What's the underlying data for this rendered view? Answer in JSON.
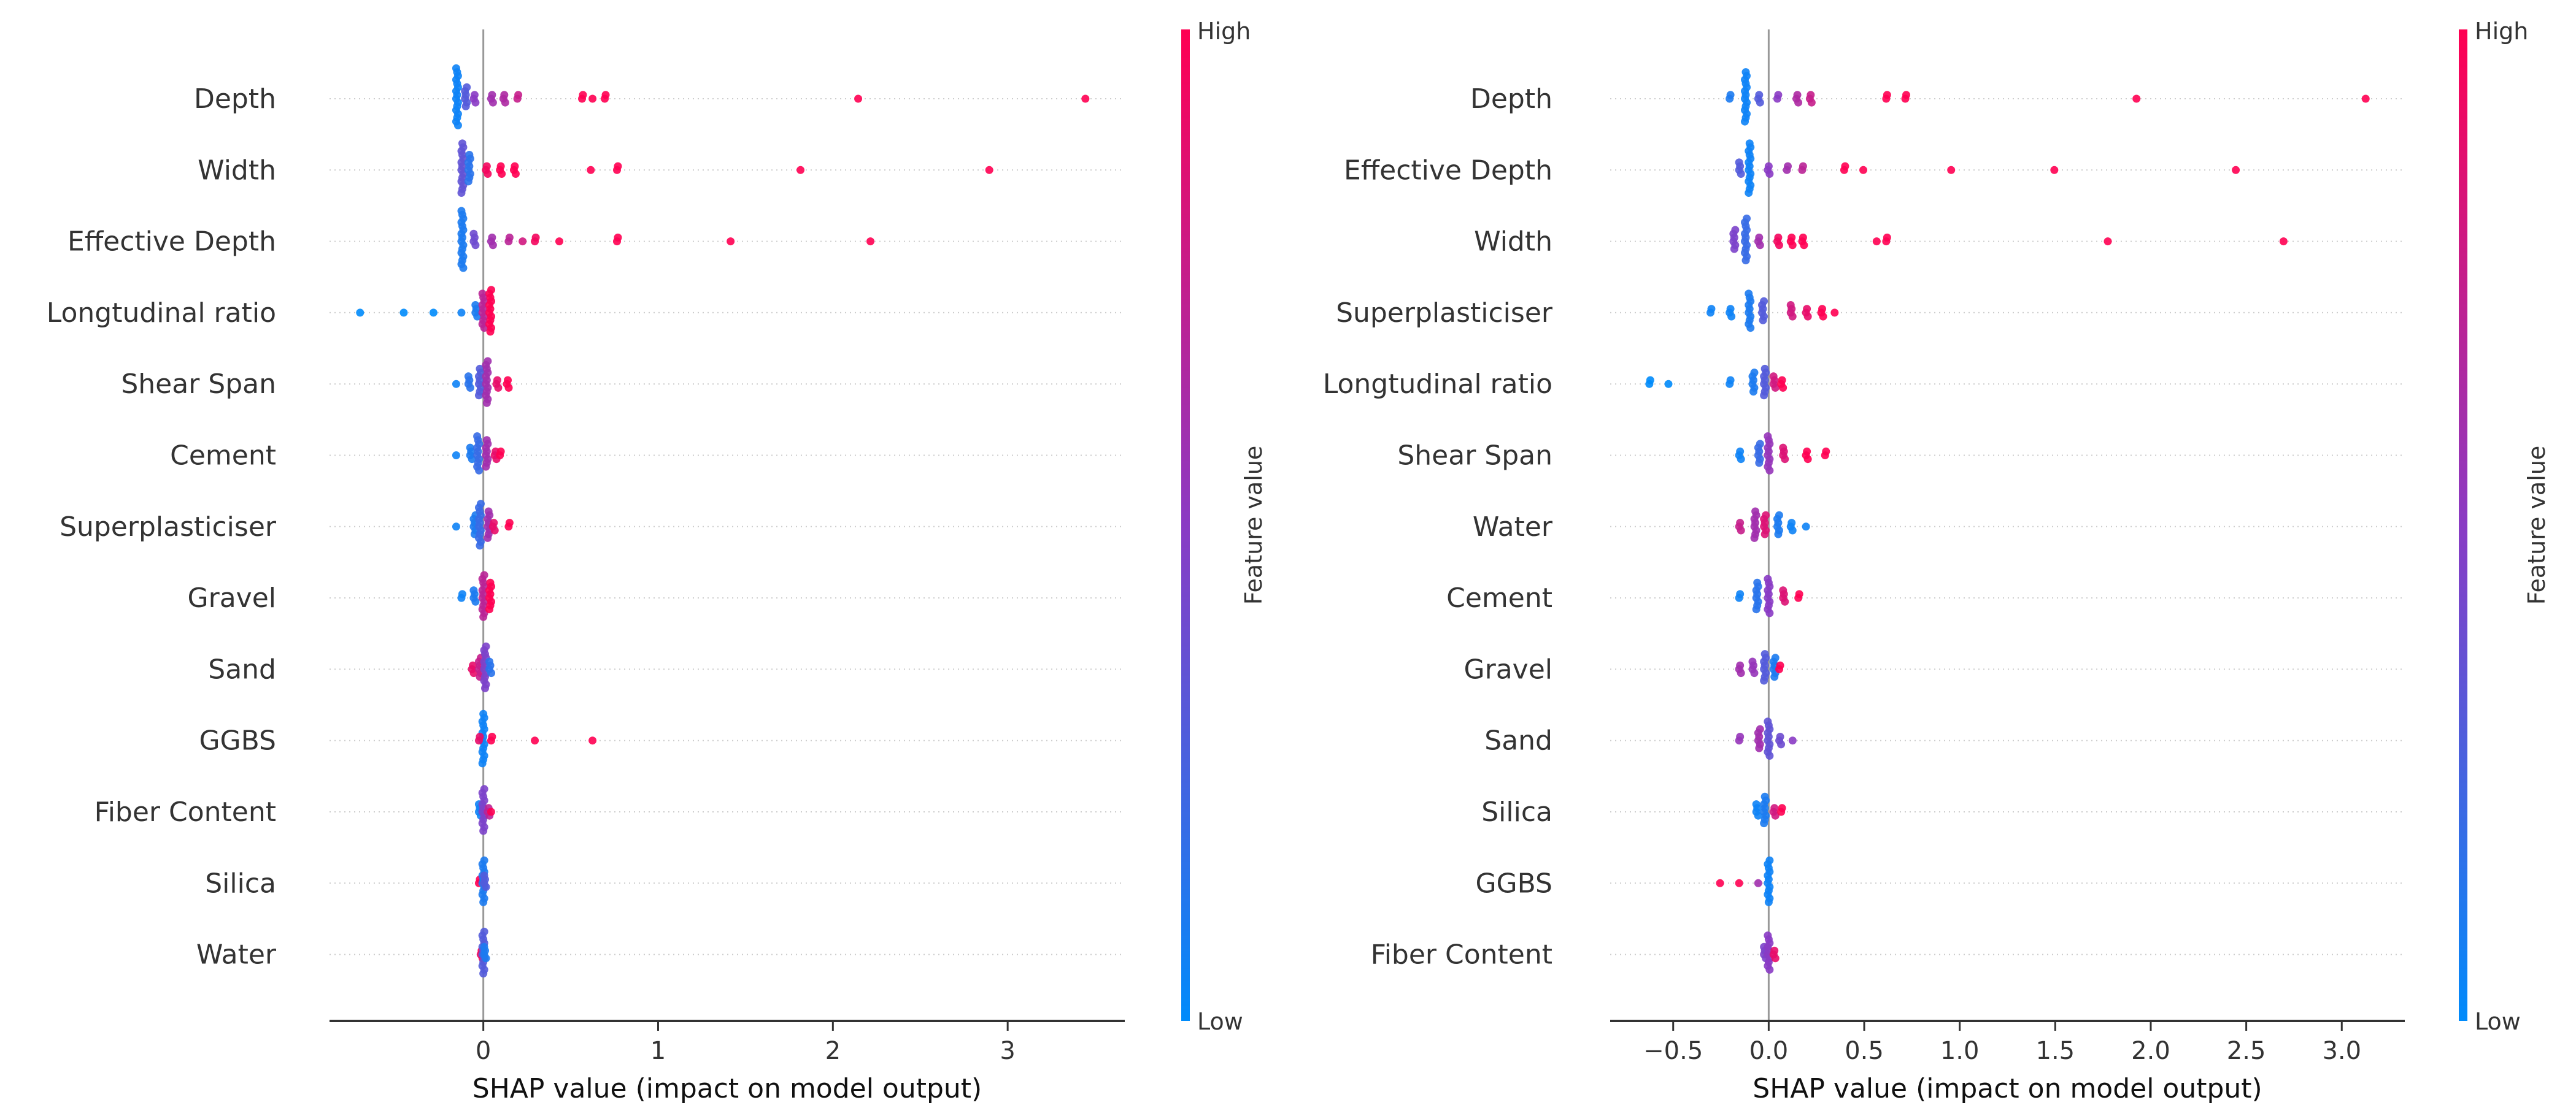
{
  "chart_data": [
    {
      "type": "scatter",
      "subtype": "shap-beeswarm",
      "xlabel": "SHAP value (impact on model output)",
      "xlim": [
        -0.88,
        3.67
      ],
      "xticks": [
        0,
        1,
        2,
        3
      ],
      "xtick_labels": [
        "0",
        "1",
        "2",
        "3"
      ],
      "colorbar": {
        "title": "Feature value",
        "high": "High",
        "low": "Low",
        "low_color": "#008bfb",
        "mid_color": "#8a3bc4",
        "high_color": "#ff0052"
      },
      "point_format": "[shap_value, normalized_feature_value, count]",
      "features": [
        {
          "name": "Depth",
          "points": [
            [
              -0.15,
              0.05,
              16
            ],
            [
              -0.1,
              0.3,
              6
            ],
            [
              -0.05,
              0.5,
              3
            ],
            [
              0.05,
              0.6,
              3
            ],
            [
              0.12,
              0.65,
              3
            ],
            [
              0.2,
              0.75,
              2
            ],
            [
              0.57,
              1,
              2
            ],
            [
              0.63,
              1,
              1
            ],
            [
              0.7,
              1,
              2
            ],
            [
              2.15,
              1,
              1
            ],
            [
              3.45,
              1,
              1
            ]
          ]
        },
        {
          "name": "Width",
          "points": [
            [
              -0.12,
              0.35,
              14
            ],
            [
              -0.08,
              0.15,
              8
            ],
            [
              0.02,
              0.95,
              3
            ],
            [
              0.1,
              1,
              3
            ],
            [
              0.18,
              1,
              3
            ],
            [
              0.62,
              1,
              1
            ],
            [
              0.77,
              1,
              2
            ],
            [
              1.82,
              1,
              1
            ],
            [
              2.9,
              1,
              1
            ]
          ]
        },
        {
          "name": "Effective Depth",
          "points": [
            [
              -0.12,
              0.1,
              16
            ],
            [
              -0.05,
              0.4,
              4
            ],
            [
              0.05,
              0.6,
              3
            ],
            [
              0.15,
              0.7,
              2
            ],
            [
              0.23,
              0.8,
              1
            ],
            [
              0.3,
              0.95,
              2
            ],
            [
              0.44,
              1,
              1
            ],
            [
              0.77,
              1,
              2
            ],
            [
              1.42,
              1,
              1
            ],
            [
              2.22,
              1,
              1
            ]
          ]
        },
        {
          "name": "Longtudinal ratio",
          "points": [
            [
              -0.7,
              0,
              1
            ],
            [
              -0.45,
              0,
              1
            ],
            [
              -0.28,
              0,
              1
            ],
            [
              -0.12,
              0.05,
              1
            ],
            [
              -0.04,
              0.1,
              4
            ],
            [
              0.0,
              0.7,
              10
            ],
            [
              0.04,
              1,
              12
            ]
          ]
        },
        {
          "name": "Shear Span",
          "points": [
            [
              -0.15,
              0.05,
              1
            ],
            [
              -0.08,
              0.15,
              4
            ],
            [
              -0.02,
              0.3,
              8
            ],
            [
              0.02,
              0.6,
              12
            ],
            [
              0.08,
              0.9,
              3
            ],
            [
              0.14,
              1,
              3
            ]
          ]
        },
        {
          "name": "Cement",
          "points": [
            [
              -0.15,
              0.05,
              1
            ],
            [
              -0.07,
              0.1,
              4
            ],
            [
              -0.03,
              0.2,
              10
            ],
            [
              0.02,
              0.6,
              8
            ],
            [
              0.07,
              0.9,
              3
            ],
            [
              0.1,
              1,
              2
            ]
          ]
        },
        {
          "name": "Superplasticiser",
          "points": [
            [
              -0.15,
              0.05,
              1
            ],
            [
              -0.05,
              0.1,
              6
            ],
            [
              -0.02,
              0.2,
              12
            ],
            [
              0.03,
              0.6,
              8
            ],
            [
              0.06,
              0.9,
              3
            ],
            [
              0.15,
              1,
              2
            ]
          ]
        },
        {
          "name": "Gravel",
          "points": [
            [
              -0.12,
              0.05,
              2
            ],
            [
              -0.05,
              0.1,
              4
            ],
            [
              0.0,
              0.7,
              12
            ],
            [
              0.04,
              1,
              8
            ]
          ]
        },
        {
          "name": "Sand",
          "points": [
            [
              -0.06,
              0.9,
              3
            ],
            [
              -0.02,
              0.75,
              6
            ],
            [
              0.01,
              0.45,
              12
            ],
            [
              0.04,
              0.15,
              4
            ]
          ]
        },
        {
          "name": "GGBS",
          "points": [
            [
              0.0,
              0.05,
              14
            ],
            [
              -0.02,
              0.9,
              2
            ],
            [
              0.05,
              1,
              2
            ],
            [
              0.3,
              1,
              1
            ],
            [
              0.63,
              1,
              1
            ]
          ]
        },
        {
          "name": "Fiber Content",
          "points": [
            [
              -0.02,
              0.05,
              4
            ],
            [
              0.0,
              0.45,
              12
            ],
            [
              0.03,
              0.7,
              3
            ],
            [
              0.05,
              1,
              1
            ]
          ]
        },
        {
          "name": "Silica",
          "points": [
            [
              -0.02,
              1,
              2
            ],
            [
              0.0,
              0.1,
              12
            ],
            [
              0.01,
              0.3,
              4
            ]
          ]
        },
        {
          "name": "Water",
          "points": [
            [
              -0.01,
              0.95,
              3
            ],
            [
              0.0,
              0.3,
              12
            ],
            [
              0.01,
              0.1,
              4
            ]
          ]
        }
      ]
    },
    {
      "type": "scatter",
      "subtype": "shap-beeswarm",
      "xlabel": "SHAP value (impact on model output)",
      "xlim": [
        -0.83,
        3.33
      ],
      "xticks": [
        -0.5,
        0.0,
        0.5,
        1.0,
        1.5,
        2.0,
        2.5,
        3.0
      ],
      "xtick_labels": [
        "−0.5",
        "0.0",
        "0.5",
        "1.0",
        "1.5",
        "2.0",
        "2.5",
        "3.0"
      ],
      "colorbar": {
        "title": "Feature value",
        "high": "High",
        "low": "Low",
        "low_color": "#008bfb",
        "mid_color": "#8a3bc4",
        "high_color": "#ff0052"
      },
      "point_format": "[shap_value, normalized_feature_value, count]",
      "features": [
        {
          "name": "Depth",
          "points": [
            [
              -0.2,
              0.1,
              2
            ],
            [
              -0.12,
              0.05,
              14
            ],
            [
              -0.05,
              0.3,
              3
            ],
            [
              0.05,
              0.5,
              2
            ],
            [
              0.15,
              0.65,
              3
            ],
            [
              0.22,
              0.75,
              3
            ],
            [
              0.62,
              1,
              2
            ],
            [
              0.72,
              1,
              2
            ],
            [
              1.93,
              1,
              1
            ],
            [
              3.13,
              1,
              1
            ]
          ]
        },
        {
          "name": "Effective Depth",
          "points": [
            [
              -0.15,
              0.3,
              4
            ],
            [
              -0.1,
              0.05,
              14
            ],
            [
              0.0,
              0.5,
              3
            ],
            [
              0.1,
              0.6,
              2
            ],
            [
              0.18,
              0.7,
              2
            ],
            [
              0.4,
              1,
              2
            ],
            [
              0.5,
              1,
              1
            ],
            [
              0.96,
              1,
              1
            ],
            [
              1.5,
              1,
              1
            ],
            [
              2.45,
              1,
              1
            ]
          ]
        },
        {
          "name": "Width",
          "points": [
            [
              -0.18,
              0.45,
              6
            ],
            [
              -0.12,
              0.2,
              12
            ],
            [
              -0.05,
              0.6,
              3
            ],
            [
              0.05,
              0.95,
              3
            ],
            [
              0.12,
              1,
              3
            ],
            [
              0.18,
              1,
              3
            ],
            [
              0.57,
              1,
              1
            ],
            [
              0.62,
              1,
              2
            ],
            [
              1.78,
              1,
              1
            ],
            [
              2.7,
              1,
              1
            ]
          ]
        },
        {
          "name": "Superplasticiser",
          "points": [
            [
              -0.3,
              0.05,
              2
            ],
            [
              -0.2,
              0.05,
              3
            ],
            [
              -0.1,
              0.1,
              10
            ],
            [
              -0.03,
              0.3,
              6
            ],
            [
              0.12,
              0.8,
              4
            ],
            [
              0.2,
              0.9,
              3
            ],
            [
              0.28,
              1,
              3
            ],
            [
              0.35,
              1,
              1
            ]
          ]
        },
        {
          "name": "Longtudinal ratio",
          "points": [
            [
              -0.62,
              0,
              2
            ],
            [
              -0.52,
              0,
              1
            ],
            [
              -0.2,
              0.05,
              2
            ],
            [
              -0.08,
              0.1,
              6
            ],
            [
              -0.02,
              0.3,
              8
            ],
            [
              0.03,
              0.8,
              4
            ],
            [
              0.07,
              1,
              3
            ]
          ]
        },
        {
          "name": "Shear Span",
          "points": [
            [
              -0.15,
              0.05,
              3
            ],
            [
              -0.05,
              0.2,
              6
            ],
            [
              0.0,
              0.55,
              10
            ],
            [
              0.08,
              0.85,
              4
            ],
            [
              0.2,
              1,
              3
            ],
            [
              0.3,
              1,
              2
            ]
          ]
        },
        {
          "name": "Water",
          "points": [
            [
              -0.15,
              0.75,
              3
            ],
            [
              -0.07,
              0.6,
              8
            ],
            [
              -0.02,
              0.85,
              6
            ],
            [
              0.05,
              0.1,
              6
            ],
            [
              0.12,
              0.05,
              3
            ],
            [
              0.2,
              0.05,
              1
            ]
          ]
        },
        {
          "name": "Cement",
          "points": [
            [
              -0.15,
              0.05,
              2
            ],
            [
              -0.06,
              0.15,
              8
            ],
            [
              0.0,
              0.5,
              10
            ],
            [
              0.08,
              0.85,
              4
            ],
            [
              0.16,
              1,
              2
            ]
          ]
        },
        {
          "name": "Gravel",
          "points": [
            [
              -0.15,
              0.6,
              3
            ],
            [
              -0.08,
              0.55,
              4
            ],
            [
              -0.02,
              0.3,
              8
            ],
            [
              0.03,
              0.1,
              6
            ],
            [
              0.06,
              1,
              2
            ]
          ]
        },
        {
          "name": "Sand",
          "points": [
            [
              -0.15,
              0.55,
              2
            ],
            [
              -0.05,
              0.6,
              6
            ],
            [
              0.0,
              0.35,
              10
            ],
            [
              0.06,
              0.4,
              3
            ],
            [
              0.13,
              0.5,
              1
            ]
          ]
        },
        {
          "name": "Silica",
          "points": [
            [
              -0.06,
              0.05,
              4
            ],
            [
              -0.02,
              0.1,
              8
            ],
            [
              0.03,
              0.8,
              3
            ],
            [
              0.07,
              1,
              2
            ]
          ]
        },
        {
          "name": "GGBS",
          "points": [
            [
              -0.25,
              1,
              1
            ],
            [
              -0.15,
              1,
              1
            ],
            [
              -0.05,
              0.6,
              1
            ],
            [
              0.0,
              0.05,
              12
            ]
          ]
        },
        {
          "name": "Fiber Content",
          "points": [
            [
              -0.02,
              0.45,
              4
            ],
            [
              0.0,
              0.5,
              10
            ],
            [
              0.03,
              0.9,
              3
            ]
          ]
        }
      ]
    }
  ]
}
